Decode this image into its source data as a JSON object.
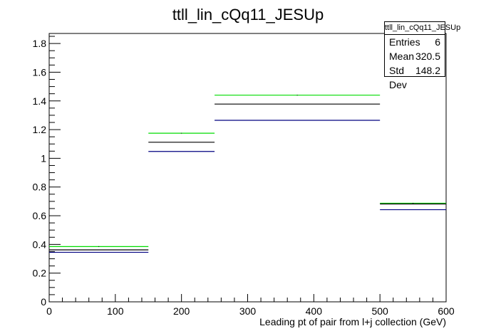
{
  "chart_data": {
    "type": "step-histogram",
    "title": "ttll_lin_cQq11_JESUp",
    "xlabel": "Leading pt of pair from l+j collection (GeV)",
    "ylabel": "",
    "xlim": [
      0,
      600
    ],
    "ylim": [
      0,
      1.87
    ],
    "x_ticks": [
      0,
      100,
      200,
      300,
      400,
      500,
      600
    ],
    "y_ticks": [
      0,
      0.2,
      0.4,
      0.6,
      0.8,
      1,
      1.2,
      1.4,
      1.6,
      1.8
    ],
    "bin_edges": [
      0,
      150,
      250,
      500,
      600
    ],
    "series": [
      {
        "color": "#00dd00",
        "values": [
          0.385,
          1.175,
          1.44,
          0.687
        ]
      },
      {
        "color": "#000000",
        "values": [
          0.362,
          1.112,
          1.378,
          0.682
        ]
      },
      {
        "color": "#000080",
        "values": [
          0.345,
          1.048,
          1.265,
          0.642
        ]
      }
    ],
    "grid": false,
    "legend": "none"
  },
  "stats": {
    "title": "ttll_lin_cQq11_JESUp",
    "rows": [
      {
        "label": "Entries",
        "value": "6"
      },
      {
        "label": "Mean",
        "value": "320.5"
      },
      {
        "label": "Std Dev",
        "value": "148.2"
      }
    ]
  }
}
